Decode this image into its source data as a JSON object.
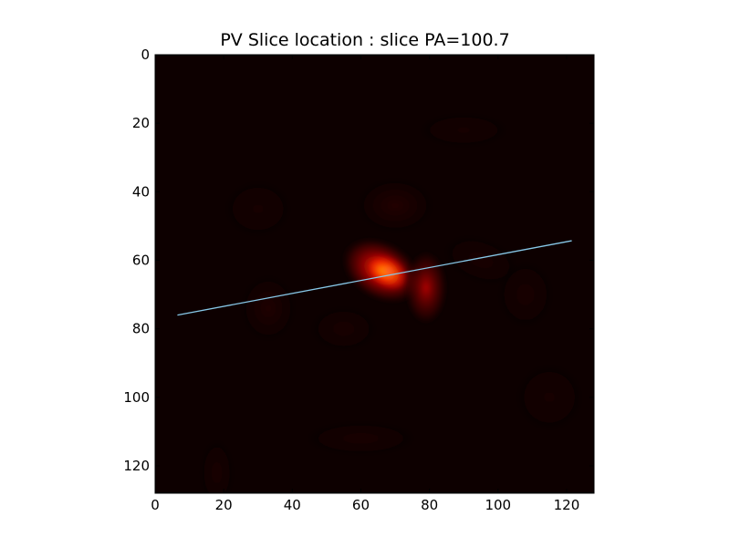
{
  "chart_data": {
    "type": "heatmap",
    "title": "PV Slice location : slice PA=100.7",
    "xlabel": "",
    "ylabel": "",
    "xlim": [
      0,
      128
    ],
    "ylim": [
      128,
      0
    ],
    "x_ticks": [
      "0",
      "20",
      "40",
      "60",
      "80",
      "100",
      "120"
    ],
    "y_ticks": [
      "0",
      "20",
      "40",
      "60",
      "80",
      "100",
      "120"
    ],
    "colormap": "hot",
    "background_color": "#0d0000",
    "grid": false,
    "slice_line": {
      "color": "#87c8e8",
      "x": [
        6.5,
        121.5
      ],
      "y": [
        76,
        54.3
      ]
    },
    "emission_blobs": [
      {
        "x": 68,
        "y": 63.5,
        "sx": 4.5,
        "sy": 3.2,
        "angle": 35,
        "amp": 1.0
      },
      {
        "x": 66,
        "y": 63,
        "sx": 8,
        "sy": 5.5,
        "angle": 30,
        "amp": 0.55
      },
      {
        "x": 79,
        "y": 68,
        "sx": 4,
        "sy": 7,
        "angle": 0,
        "amp": 0.35
      },
      {
        "x": 70,
        "y": 44,
        "sx": 7,
        "sy": 5,
        "angle": 0,
        "amp": 0.08
      },
      {
        "x": 33,
        "y": 74,
        "sx": 5,
        "sy": 6,
        "angle": 0,
        "amp": 0.07
      },
      {
        "x": 55,
        "y": 80,
        "sx": 6,
        "sy": 4,
        "angle": 0,
        "amp": 0.05
      },
      {
        "x": 95,
        "y": 60,
        "sx": 7,
        "sy": 4,
        "angle": 20,
        "amp": 0.05
      },
      {
        "x": 108,
        "y": 70,
        "sx": 5,
        "sy": 6,
        "angle": 0,
        "amp": 0.05
      },
      {
        "x": 60,
        "y": 112,
        "sx": 10,
        "sy": 3,
        "angle": 0,
        "amp": 0.05
      },
      {
        "x": 18,
        "y": 122,
        "sx": 3,
        "sy": 6,
        "angle": 0,
        "amp": 0.05
      },
      {
        "x": 90,
        "y": 22,
        "sx": 8,
        "sy": 3,
        "angle": 0,
        "amp": 0.04
      },
      {
        "x": 30,
        "y": 45,
        "sx": 6,
        "sy": 5,
        "angle": 0,
        "amp": 0.04
      },
      {
        "x": 115,
        "y": 100,
        "sx": 6,
        "sy": 6,
        "angle": 0,
        "amp": 0.04
      }
    ]
  }
}
